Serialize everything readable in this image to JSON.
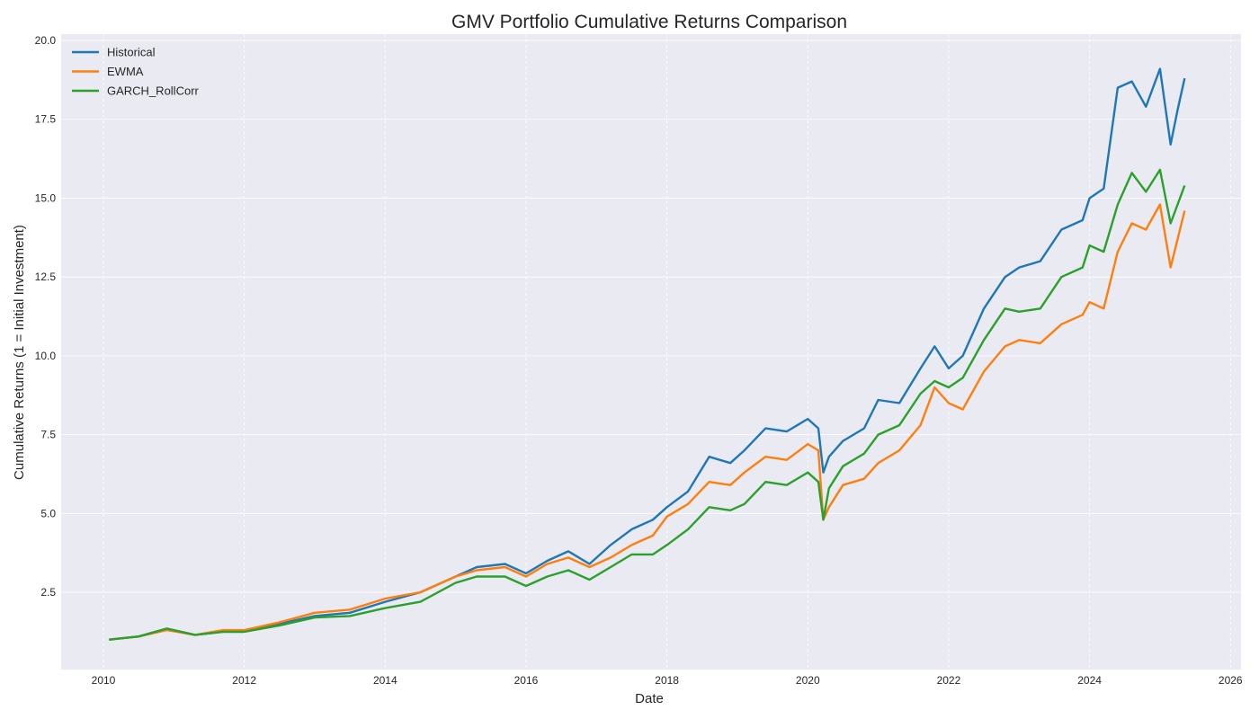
{
  "chart_data": {
    "type": "line",
    "title": "GMV Portfolio Cumulative Returns Comparison",
    "xlabel": "Date",
    "ylabel": "Cumulative Returns (1 = Initial Investment)",
    "xlim": [
      2009.4,
      2026.15
    ],
    "ylim": [
      0.05,
      20.2
    ],
    "x_ticks": [
      2010,
      2012,
      2014,
      2016,
      2018,
      2020,
      2022,
      2024,
      2026
    ],
    "y_ticks": [
      2.5,
      5.0,
      7.5,
      10.0,
      12.5,
      15.0,
      17.5,
      20.0
    ],
    "y_tick_labels": [
      "2.5",
      "5.0",
      "7.5",
      "10.0",
      "12.5",
      "15.0",
      "17.5",
      "20.0"
    ],
    "grid": true,
    "legend_position": "top-left",
    "background_color": "#eaeaf2",
    "series": [
      {
        "name": "Historical",
        "color": "#1f77b4",
        "x": [
          2010.08,
          2010.5,
          2010.9,
          2011.3,
          2011.7,
          2012.0,
          2012.5,
          2013.0,
          2013.5,
          2014.0,
          2014.5,
          2015.0,
          2015.3,
          2015.7,
          2016.0,
          2016.3,
          2016.6,
          2016.9,
          2017.2,
          2017.5,
          2017.8,
          2018.0,
          2018.3,
          2018.6,
          2018.9,
          2019.1,
          2019.4,
          2019.7,
          2020.0,
          2020.15,
          2020.22,
          2020.3,
          2020.5,
          2020.8,
          2021.0,
          2021.3,
          2021.6,
          2021.8,
          2022.0,
          2022.2,
          2022.5,
          2022.8,
          2023.0,
          2023.3,
          2023.6,
          2023.9,
          2024.0,
          2024.2,
          2024.4,
          2024.6,
          2024.8,
          2025.0,
          2025.15,
          2025.25,
          2025.35
        ],
        "y": [
          1.0,
          1.1,
          1.35,
          1.15,
          1.25,
          1.25,
          1.5,
          1.75,
          1.85,
          2.2,
          2.5,
          3.0,
          3.3,
          3.4,
          3.1,
          3.5,
          3.8,
          3.4,
          4.0,
          4.5,
          4.8,
          5.2,
          5.7,
          6.8,
          6.6,
          7.0,
          7.7,
          7.6,
          8.0,
          7.7,
          6.3,
          6.8,
          7.3,
          7.7,
          8.6,
          8.5,
          9.6,
          10.3,
          9.6,
          10.0,
          11.5,
          12.5,
          12.8,
          13.0,
          14.0,
          14.3,
          15.0,
          15.3,
          18.5,
          18.7,
          17.9,
          19.1,
          16.7,
          17.8,
          18.8
        ]
      },
      {
        "name": "EWMA",
        "color": "#ff7f0e",
        "x": [
          2010.08,
          2010.5,
          2010.9,
          2011.3,
          2011.7,
          2012.0,
          2012.5,
          2013.0,
          2013.5,
          2014.0,
          2014.5,
          2015.0,
          2015.3,
          2015.7,
          2016.0,
          2016.3,
          2016.6,
          2016.9,
          2017.2,
          2017.5,
          2017.8,
          2018.0,
          2018.3,
          2018.6,
          2018.9,
          2019.1,
          2019.4,
          2019.7,
          2020.0,
          2020.15,
          2020.22,
          2020.3,
          2020.5,
          2020.8,
          2021.0,
          2021.3,
          2021.6,
          2021.8,
          2022.0,
          2022.2,
          2022.5,
          2022.8,
          2023.0,
          2023.3,
          2023.6,
          2023.9,
          2024.0,
          2024.2,
          2024.4,
          2024.6,
          2024.8,
          2025.0,
          2025.15,
          2025.25,
          2025.35
        ],
        "y": [
          1.0,
          1.1,
          1.3,
          1.15,
          1.3,
          1.3,
          1.55,
          1.85,
          1.95,
          2.3,
          2.5,
          3.0,
          3.2,
          3.3,
          3.0,
          3.4,
          3.6,
          3.3,
          3.6,
          4.0,
          4.3,
          4.9,
          5.3,
          6.0,
          5.9,
          6.3,
          6.8,
          6.7,
          7.2,
          7.0,
          4.8,
          5.2,
          5.9,
          6.1,
          6.6,
          7.0,
          7.8,
          9.0,
          8.5,
          8.3,
          9.5,
          10.3,
          10.5,
          10.4,
          11.0,
          11.3,
          11.7,
          11.5,
          13.3,
          14.2,
          14.0,
          14.8,
          12.8,
          13.7,
          14.6
        ]
      },
      {
        "name": "GARCH_RollCorr",
        "color": "#2ca02c",
        "x": [
          2010.08,
          2010.5,
          2010.9,
          2011.3,
          2011.7,
          2012.0,
          2012.5,
          2013.0,
          2013.5,
          2014.0,
          2014.5,
          2015.0,
          2015.3,
          2015.7,
          2016.0,
          2016.3,
          2016.6,
          2016.9,
          2017.2,
          2017.5,
          2017.8,
          2018.0,
          2018.3,
          2018.6,
          2018.9,
          2019.1,
          2019.4,
          2019.7,
          2020.0,
          2020.15,
          2020.22,
          2020.3,
          2020.5,
          2020.8,
          2021.0,
          2021.3,
          2021.6,
          2021.8,
          2022.0,
          2022.2,
          2022.5,
          2022.8,
          2023.0,
          2023.3,
          2023.6,
          2023.9,
          2024.0,
          2024.2,
          2024.4,
          2024.6,
          2024.8,
          2025.0,
          2025.15,
          2025.25,
          2025.35
        ],
        "y": [
          1.0,
          1.1,
          1.35,
          1.15,
          1.25,
          1.25,
          1.45,
          1.7,
          1.75,
          2.0,
          2.2,
          2.8,
          3.0,
          3.0,
          2.7,
          3.0,
          3.2,
          2.9,
          3.3,
          3.7,
          3.7,
          4.0,
          4.5,
          5.2,
          5.1,
          5.3,
          6.0,
          5.9,
          6.3,
          6.0,
          4.8,
          5.8,
          6.5,
          6.9,
          7.5,
          7.8,
          8.8,
          9.2,
          9.0,
          9.3,
          10.5,
          11.5,
          11.4,
          11.5,
          12.5,
          12.8,
          13.5,
          13.3,
          14.8,
          15.8,
          15.2,
          15.9,
          14.2,
          14.8,
          15.4
        ]
      }
    ]
  }
}
